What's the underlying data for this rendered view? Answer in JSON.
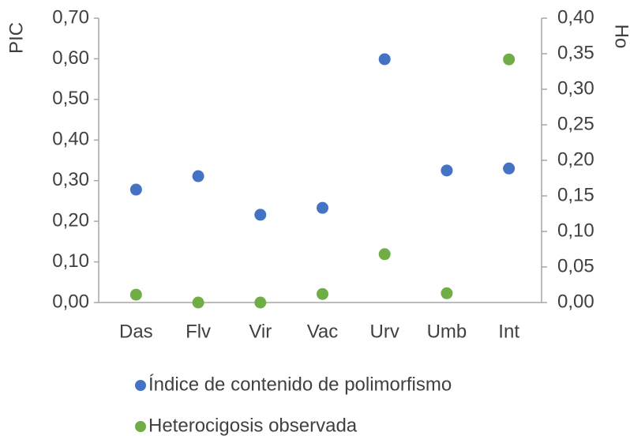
{
  "chart_data": {
    "type": "scatter",
    "categories": [
      "Das",
      "Flv",
      "Vir",
      "Vac",
      "Urv",
      "Umb",
      "Int"
    ],
    "ylabel": "PIC",
    "y2label": "Ho",
    "ylim": [
      0,
      0.7
    ],
    "yticks": [
      {
        "value": 0,
        "label": "0,00"
      },
      {
        "value": 0.1,
        "label": "0,10"
      },
      {
        "value": 0.2,
        "label": "0,20"
      },
      {
        "value": 0.3,
        "label": "0,30"
      },
      {
        "value": 0.4,
        "label": "0,40"
      },
      {
        "value": 0.5,
        "label": "0,50"
      },
      {
        "value": 0.6,
        "label": "0,60"
      },
      {
        "value": 0.7,
        "label": "0,70"
      }
    ],
    "y2lim": [
      0,
      0.4
    ],
    "y2ticks": [
      {
        "value": 0,
        "label": "0,00"
      },
      {
        "value": 0.05,
        "label": "0,05"
      },
      {
        "value": 0.1,
        "label": "0,10"
      },
      {
        "value": 0.15,
        "label": "0,15"
      },
      {
        "value": 0.2,
        "label": "0,20"
      },
      {
        "value": 0.25,
        "label": "0,25"
      },
      {
        "value": 0.3,
        "label": "0,30"
      },
      {
        "value": 0.35,
        "label": "0,35"
      },
      {
        "value": 0.4,
        "label": "0,40"
      }
    ],
    "grid": false,
    "legend": "bottom",
    "series": [
      {
        "name": "Índice de contenido de polimorfismo",
        "color": "#4472c4",
        "values": [
          0.278,
          0.311,
          0.216,
          0.233,
          0.599,
          0.325,
          0.33
        ]
      },
      {
        "name": "Heterocigosis observada",
        "color": "#70ad47",
        "axis": "y2",
        "values": [
          0.011,
          0,
          0,
          0.012,
          0.068,
          0.013,
          0.342
        ]
      }
    ]
  }
}
